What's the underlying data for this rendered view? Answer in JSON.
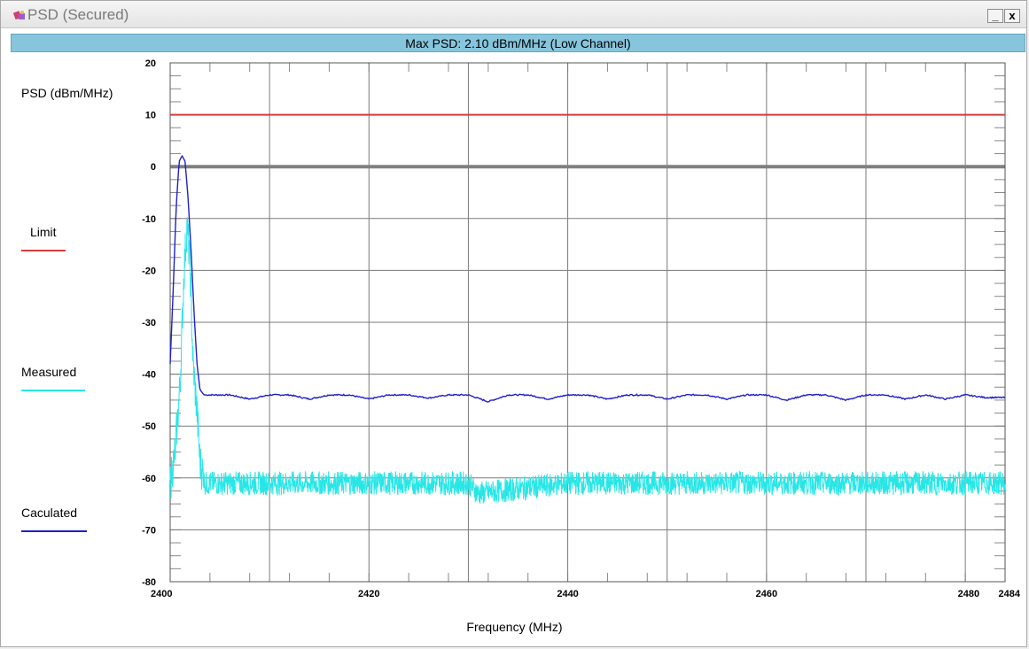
{
  "window": {
    "title": "PSD (Secured)",
    "minimize_glyph": "_",
    "close_glyph": "x",
    "app_icon": "app-icon"
  },
  "header": {
    "text": "Max PSD: 2.10 dBm/MHz (Low Channel)"
  },
  "legend": {
    "items": [
      {
        "label": "Limit",
        "color": "#d23c3c"
      },
      {
        "label": "Measured",
        "color": "#29e6e6"
      },
      {
        "label": "Caculated",
        "color": "#2020c8"
      }
    ]
  },
  "chart_data": {
    "type": "line",
    "title": "Max PSD: 2.10 dBm/MHz (Low Channel)",
    "xlabel": "Frequency (MHz)",
    "ylabel": "PSD (dBm/MHz)",
    "xlim": [
      2400,
      2484
    ],
    "ylim": [
      -80,
      20
    ],
    "x_ticks": [
      2400,
      2420,
      2440,
      2460,
      2480,
      2484
    ],
    "y_ticks": [
      20,
      10,
      0,
      -10,
      -20,
      -30,
      -40,
      -50,
      -60,
      -70,
      -80
    ],
    "grid": true,
    "zero_line": 0,
    "series": [
      {
        "name": "Limit",
        "color": "#d23c3c",
        "x": [
          2400,
          2484
        ],
        "y": [
          10,
          10
        ]
      },
      {
        "name": "Caculated",
        "color": "#2020c8",
        "x": [
          2400,
          2400.3,
          2400.6,
          2400.9,
          2401.2,
          2401.5,
          2401.8,
          2402.1,
          2402.4,
          2402.7,
          2403.0,
          2403.4,
          2404,
          2406,
          2408,
          2410,
          2412,
          2414,
          2416,
          2418,
          2420,
          2422,
          2424,
          2426,
          2428,
          2430,
          2432,
          2434,
          2436,
          2438,
          2440,
          2442,
          2444,
          2446,
          2448,
          2450,
          2452,
          2454,
          2456,
          2458,
          2460,
          2462,
          2464,
          2466,
          2468,
          2470,
          2472,
          2474,
          2476,
          2478,
          2480,
          2482,
          2484
        ],
        "y": [
          -38,
          -24,
          -8,
          1,
          2.1,
          1,
          -6,
          -16,
          -28,
          -38,
          -43,
          -44,
          -44,
          -44,
          -44.8,
          -44,
          -44,
          -44.8,
          -44,
          -44,
          -44.8,
          -44,
          -44,
          -44.6,
          -44,
          -44,
          -45.3,
          -44,
          -44,
          -44.8,
          -44,
          -44,
          -44.8,
          -44,
          -44,
          -44.8,
          -44,
          -44,
          -44.8,
          -44,
          -44,
          -45,
          -44,
          -44,
          -45,
          -44,
          -44,
          -44.8,
          -44,
          -44.8,
          -44,
          -44.5,
          -44.5
        ]
      },
      {
        "name": "Measured",
        "color": "#29e6e6",
        "x": [
          2400,
          2400.5,
          2401.0,
          2401.4,
          2401.7,
          2402.0,
          2402.3,
          2402.7,
          2403.0,
          2403.5,
          2404,
          2410,
          2420,
          2430,
          2431,
          2440,
          2450,
          2460,
          2470,
          2480,
          2484
        ],
        "y": [
          -61,
          -55,
          -42,
          -20,
          -11,
          -19,
          -38,
          -47,
          -57,
          -61,
          -61,
          -61,
          -61,
          -61,
          -63,
          -61,
          -61,
          -61,
          -61,
          -61,
          -61
        ]
      }
    ]
  }
}
